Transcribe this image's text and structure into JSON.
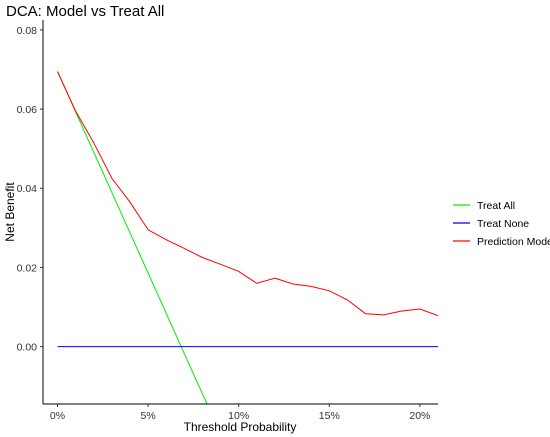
{
  "chart_data": {
    "type": "line",
    "title": "DCA: Model vs Treat All",
    "xlabel": "Threshold Probability",
    "ylabel": "Net Benefit",
    "xlim": [
      -0.008,
      0.21
    ],
    "ylim": [
      -0.0145,
      0.0825
    ],
    "x_ticks": [
      {
        "value": 0.0,
        "label": "0%"
      },
      {
        "value": 0.05,
        "label": "5%"
      },
      {
        "value": 0.1,
        "label": "10%"
      },
      {
        "value": 0.15,
        "label": "15%"
      },
      {
        "value": 0.2,
        "label": "20%"
      }
    ],
    "y_ticks": [
      {
        "value": 0.0,
        "label": "0.00"
      },
      {
        "value": 0.02,
        "label": "0.02"
      },
      {
        "value": 0.04,
        "label": "0.04"
      },
      {
        "value": 0.06,
        "label": "0.06"
      },
      {
        "value": 0.08,
        "label": "0.08"
      }
    ],
    "grid": false,
    "legend_position": "right",
    "series": [
      {
        "name": "Treat All",
        "color": "#00ee00",
        "x": [
          0.0,
          0.0825
        ],
        "y": [
          0.0695,
          -0.0145
        ]
      },
      {
        "name": "Treat None",
        "color": "#0000ff",
        "x": [
          0.0,
          0.21
        ],
        "y": [
          0.0,
          0.0
        ]
      },
      {
        "name": "Prediction Model",
        "color": "#ff0000",
        "x": [
          0.0,
          0.01,
          0.02,
          0.03,
          0.04,
          0.05,
          0.06,
          0.07,
          0.08,
          0.09,
          0.1,
          0.11,
          0.12,
          0.13,
          0.14,
          0.15,
          0.16,
          0.17,
          0.18,
          0.19,
          0.2,
          0.21
        ],
        "y": [
          0.0695,
          0.0595,
          0.0515,
          0.0425,
          0.0365,
          0.0295,
          0.027,
          0.0248,
          0.0225,
          0.0208,
          0.019,
          0.016,
          0.0173,
          0.0158,
          0.0152,
          0.0141,
          0.0118,
          0.0083,
          0.008,
          0.009,
          0.0095,
          0.0078
        ]
      }
    ]
  }
}
